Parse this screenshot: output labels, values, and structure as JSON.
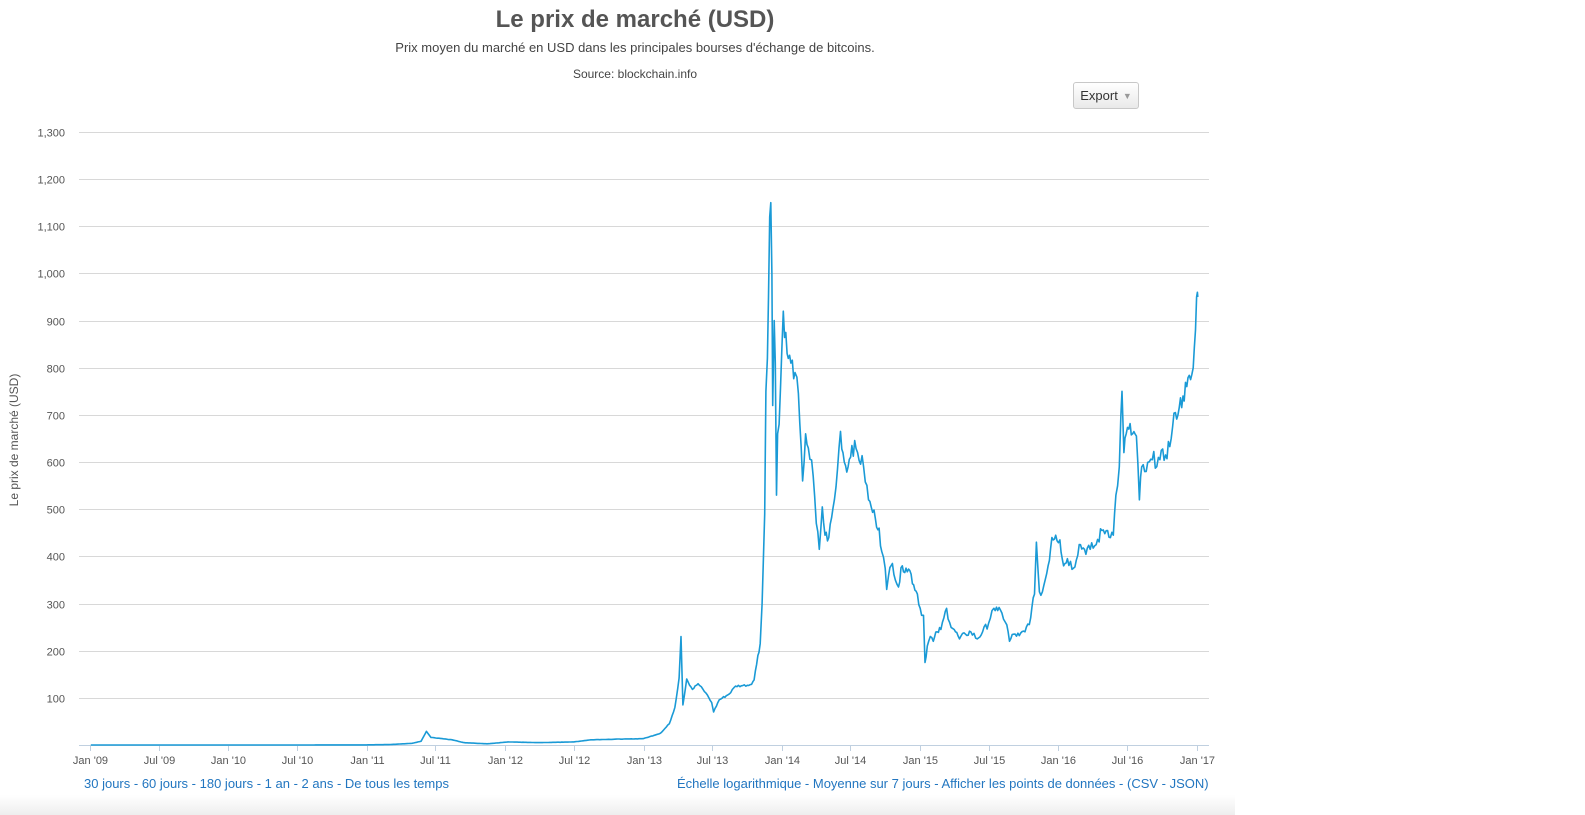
{
  "title": "Le prix de marché (USD)",
  "subtitle": "Prix moyen du marché en USD dans les principales bourses d'échange de bitcoins.",
  "source": "Source: blockchain.info",
  "export_label": "Export",
  "range_links": [
    "30 jours",
    "60 jours",
    "180 jours",
    "1 an",
    "2 ans",
    "De tous les temps"
  ],
  "option_links": [
    "Échelle logarithmique",
    "Moyenne sur 7 jours",
    "Afficher les points de données"
  ],
  "download_links": [
    "CSV",
    "JSON"
  ],
  "colors": {
    "line": "#1a9ad6",
    "grid": "#d8d8d8",
    "axis": "#c0d0e0",
    "link": "#2276c0"
  },
  "chart_data": {
    "type": "line",
    "title": "Le prix de marché (USD)",
    "ylabel": "Le prix de marché (USD)",
    "xlabel": "",
    "ylim": [
      0,
      1300
    ],
    "xlim": [
      "2009-01-01",
      "2017-01-15"
    ],
    "y_ticks": [
      "100",
      "200",
      "300",
      "400",
      "500",
      "600",
      "700",
      "800",
      "900",
      "1,000",
      "1,100",
      "1,200",
      "1,300"
    ],
    "x_ticks": [
      {
        "label": "Jan '09",
        "date": "2009-01-01"
      },
      {
        "label": "Jul '09",
        "date": "2009-07-01"
      },
      {
        "label": "Jan '10",
        "date": "2010-01-01"
      },
      {
        "label": "Jul '10",
        "date": "2010-07-01"
      },
      {
        "label": "Jan '11",
        "date": "2011-01-01"
      },
      {
        "label": "Jul '11",
        "date": "2011-07-01"
      },
      {
        "label": "Jan '12",
        "date": "2012-01-01"
      },
      {
        "label": "Jul '12",
        "date": "2012-07-01"
      },
      {
        "label": "Jan '13",
        "date": "2013-01-01"
      },
      {
        "label": "Jul '13",
        "date": "2013-07-01"
      },
      {
        "label": "Jan '14",
        "date": "2014-01-01"
      },
      {
        "label": "Jul '14",
        "date": "2014-07-01"
      },
      {
        "label": "Jan '15",
        "date": "2015-01-01"
      },
      {
        "label": "Jul '15",
        "date": "2015-07-01"
      },
      {
        "label": "Jan '16",
        "date": "2016-01-01"
      },
      {
        "label": "Jul '16",
        "date": "2016-07-01"
      },
      {
        "label": "Jan '17",
        "date": "2017-01-01"
      }
    ],
    "grid": true,
    "legend": "none",
    "series": [
      {
        "points": [
          [
            "2009-01-03",
            0
          ],
          [
            "2010-07-15",
            0.06
          ],
          [
            "2011-01-01",
            0.3
          ],
          [
            "2011-03-01",
            0.9
          ],
          [
            "2011-05-01",
            3.5
          ],
          [
            "2011-05-25",
            8
          ],
          [
            "2011-06-08",
            29
          ],
          [
            "2011-06-20",
            16
          ],
          [
            "2011-07-15",
            14
          ],
          [
            "2011-08-15",
            11
          ],
          [
            "2011-09-15",
            5
          ],
          [
            "2011-11-15",
            2.5
          ],
          [
            "2012-01-10",
            6.5
          ],
          [
            "2012-04-01",
            5
          ],
          [
            "2012-07-01",
            6.5
          ],
          [
            "2012-08-15",
            11
          ],
          [
            "2012-10-01",
            12
          ],
          [
            "2013-01-01",
            13.5
          ],
          [
            "2013-02-15",
            25
          ],
          [
            "2013-03-10",
            45
          ],
          [
            "2013-03-25",
            80
          ],
          [
            "2013-04-05",
            142
          ],
          [
            "2013-04-10",
            230
          ],
          [
            "2013-04-15",
            85
          ],
          [
            "2013-04-25",
            140
          ],
          [
            "2013-05-10",
            118
          ],
          [
            "2013-05-25",
            130
          ],
          [
            "2013-06-15",
            110
          ],
          [
            "2013-06-30",
            90
          ],
          [
            "2013-07-05",
            70
          ],
          [
            "2013-07-20",
            96
          ],
          [
            "2013-08-15",
            108
          ],
          [
            "2013-09-01",
            125
          ],
          [
            "2013-09-20",
            126
          ],
          [
            "2013-10-10",
            128
          ],
          [
            "2013-10-20",
            138
          ],
          [
            "2013-10-30",
            190
          ],
          [
            "2013-11-05",
            215
          ],
          [
            "2013-11-10",
            300
          ],
          [
            "2013-11-17",
            490
          ],
          [
            "2013-11-20",
            750
          ],
          [
            "2013-11-24",
            820
          ],
          [
            "2013-11-27",
            950
          ],
          [
            "2013-11-30",
            1120
          ],
          [
            "2013-12-03",
            1150
          ],
          [
            "2013-12-06",
            1000
          ],
          [
            "2013-12-08",
            720
          ],
          [
            "2013-12-12",
            900
          ],
          [
            "2013-12-15",
            810
          ],
          [
            "2013-12-18",
            530
          ],
          [
            "2013-12-21",
            660
          ],
          [
            "2013-12-25",
            680
          ],
          [
            "2014-01-05",
            920
          ],
          [
            "2014-01-15",
            830
          ],
          [
            "2014-01-25",
            810
          ],
          [
            "2014-02-05",
            790
          ],
          [
            "2014-02-10",
            780
          ],
          [
            "2014-02-25",
            560
          ],
          [
            "2014-03-05",
            660
          ],
          [
            "2014-03-12",
            630
          ],
          [
            "2014-03-25",
            570
          ],
          [
            "2014-04-02",
            470
          ],
          [
            "2014-04-10",
            415
          ],
          [
            "2014-04-18",
            505
          ],
          [
            "2014-04-25",
            445
          ],
          [
            "2014-05-05",
            440
          ],
          [
            "2014-05-20",
            520
          ],
          [
            "2014-05-28",
            585
          ],
          [
            "2014-06-05",
            665
          ],
          [
            "2014-06-15",
            600
          ],
          [
            "2014-06-25",
            590
          ],
          [
            "2014-07-05",
            635
          ],
          [
            "2014-07-20",
            620
          ],
          [
            "2014-08-05",
            590
          ],
          [
            "2014-08-18",
            520
          ],
          [
            "2014-08-25",
            505
          ],
          [
            "2014-09-05",
            480
          ],
          [
            "2014-09-15",
            460
          ],
          [
            "2014-09-22",
            410
          ],
          [
            "2014-10-01",
            375
          ],
          [
            "2014-10-05",
            330
          ],
          [
            "2014-10-10",
            360
          ],
          [
            "2014-10-20",
            385
          ],
          [
            "2014-11-05",
            335
          ],
          [
            "2014-11-15",
            380
          ],
          [
            "2014-11-25",
            375
          ],
          [
            "2014-12-05",
            370
          ],
          [
            "2014-12-15",
            340
          ],
          [
            "2014-12-25",
            320
          ],
          [
            "2015-01-05",
            275
          ],
          [
            "2015-01-10",
            275
          ],
          [
            "2015-01-14",
            175
          ],
          [
            "2015-01-20",
            210
          ],
          [
            "2015-01-28",
            230
          ],
          [
            "2015-02-05",
            220
          ],
          [
            "2015-02-15",
            240
          ],
          [
            "2015-02-25",
            245
          ],
          [
            "2015-03-05",
            270
          ],
          [
            "2015-03-12",
            290
          ],
          [
            "2015-03-20",
            260
          ],
          [
            "2015-04-01",
            245
          ],
          [
            "2015-04-15",
            225
          ],
          [
            "2015-05-01",
            235
          ],
          [
            "2015-05-15",
            240
          ],
          [
            "2015-06-01",
            225
          ],
          [
            "2015-06-15",
            240
          ],
          [
            "2015-07-01",
            258
          ],
          [
            "2015-07-10",
            285
          ],
          [
            "2015-07-15",
            290
          ],
          [
            "2015-07-25",
            285
          ],
          [
            "2015-08-05",
            280
          ],
          [
            "2015-08-18",
            255
          ],
          [
            "2015-08-25",
            220
          ],
          [
            "2015-09-05",
            235
          ],
          [
            "2015-09-20",
            232
          ],
          [
            "2015-10-05",
            240
          ],
          [
            "2015-10-20",
            270
          ],
          [
            "2015-10-30",
            320
          ],
          [
            "2015-11-04",
            430
          ],
          [
            "2015-11-08",
            375
          ],
          [
            "2015-11-12",
            325
          ],
          [
            "2015-11-20",
            325
          ],
          [
            "2015-12-05",
            380
          ],
          [
            "2015-12-15",
            440
          ],
          [
            "2015-12-25",
            445
          ],
          [
            "2016-01-05",
            435
          ],
          [
            "2016-01-15",
            380
          ],
          [
            "2016-01-25",
            395
          ],
          [
            "2016-02-10",
            375
          ],
          [
            "2016-02-25",
            425
          ],
          [
            "2016-03-10",
            415
          ],
          [
            "2016-03-25",
            415
          ],
          [
            "2016-04-10",
            425
          ],
          [
            "2016-04-25",
            455
          ],
          [
            "2016-05-10",
            455
          ],
          [
            "2016-05-25",
            445
          ],
          [
            "2016-06-01",
            530
          ],
          [
            "2016-06-10",
            590
          ],
          [
            "2016-06-14",
            700
          ],
          [
            "2016-06-17",
            750
          ],
          [
            "2016-06-22",
            620
          ],
          [
            "2016-06-28",
            660
          ],
          [
            "2016-07-05",
            670
          ],
          [
            "2016-07-15",
            660
          ],
          [
            "2016-07-25",
            655
          ],
          [
            "2016-08-02",
            520
          ],
          [
            "2016-08-08",
            590
          ],
          [
            "2016-08-20",
            580
          ],
          [
            "2016-09-05",
            605
          ],
          [
            "2016-09-25",
            605
          ],
          [
            "2016-10-10",
            615
          ],
          [
            "2016-10-25",
            650
          ],
          [
            "2016-11-05",
            705
          ],
          [
            "2016-11-15",
            715
          ],
          [
            "2016-11-25",
            740
          ],
          [
            "2016-12-05",
            760
          ],
          [
            "2016-12-15",
            775
          ],
          [
            "2016-12-22",
            800
          ],
          [
            "2016-12-28",
            880
          ],
          [
            "2016-12-31",
            950
          ],
          [
            "2017-01-02",
            960
          ],
          [
            "2017-01-03",
            950
          ]
        ]
      }
    ]
  }
}
